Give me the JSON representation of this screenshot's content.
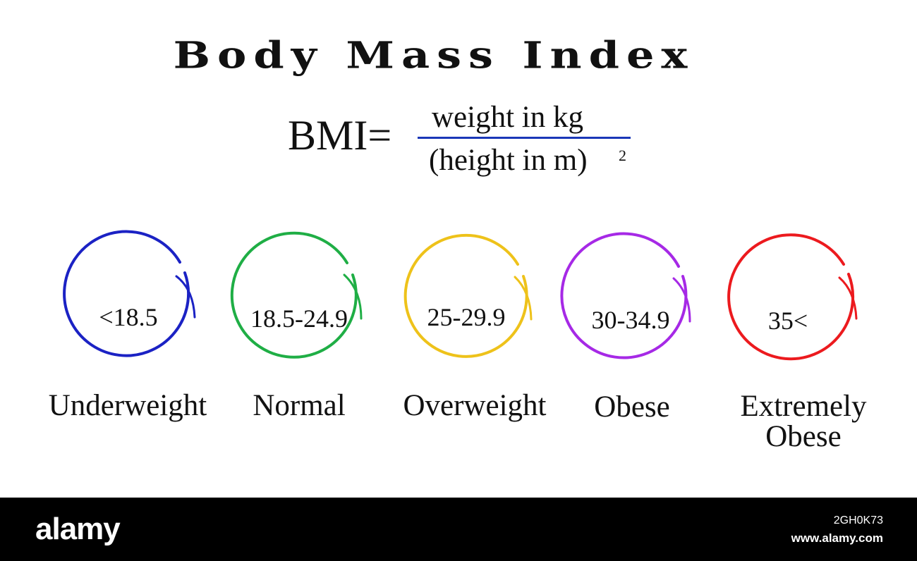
{
  "title": "Body Mass Index",
  "formula": {
    "lhs": "BMI=",
    "numerator": "weight in kg",
    "denominator": "(height in m)",
    "exponent": "2",
    "bar_color": "#1a37b8"
  },
  "categories": [
    {
      "range": "<18.5",
      "label": "Underweight",
      "color": "#1b22c4"
    },
    {
      "range": "18.5-24.9",
      "label": "Normal",
      "color": "#1fae45"
    },
    {
      "range": "25-29.9",
      "label": "Overweight",
      "color": "#eec21a"
    },
    {
      "range": "30-34.9",
      "label": "Obese",
      "color": "#a629e6"
    },
    {
      "range": "35<",
      "label": "Extremely Obese",
      "label_line1": "Extremely",
      "label_line2": "Obese",
      "color": "#ec1a1e"
    }
  ],
  "watermark": {
    "logo": "alamy",
    "image_id": "2GH0K73",
    "site": "www.alamy.com"
  }
}
